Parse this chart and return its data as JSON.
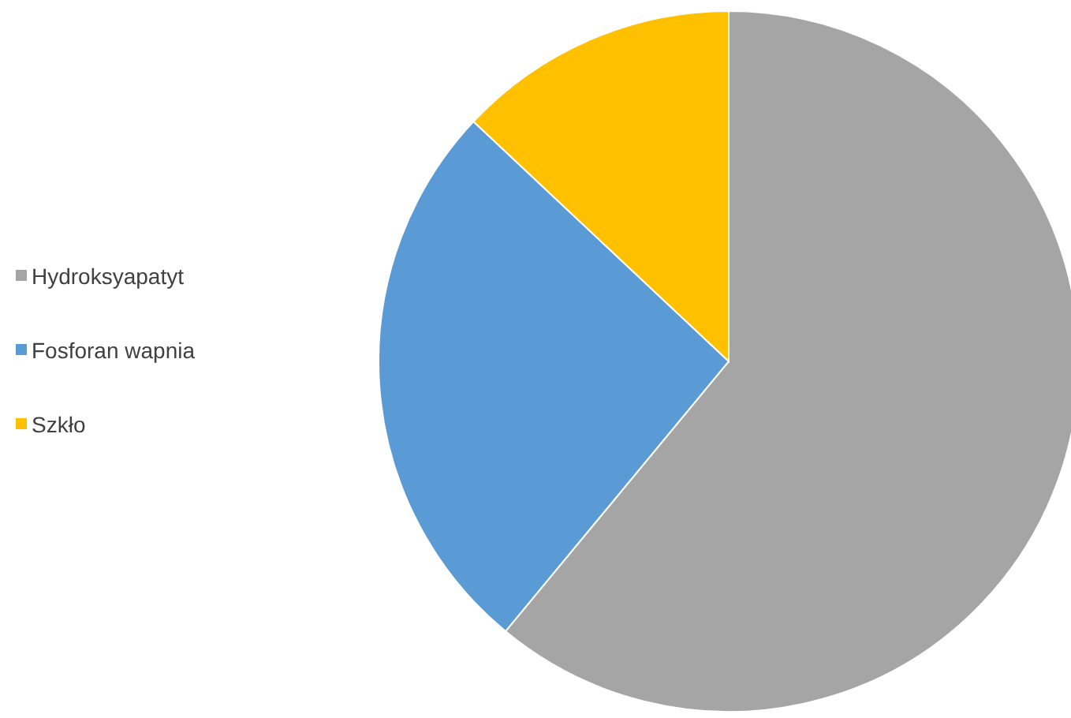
{
  "chart_data": {
    "type": "pie",
    "categories": [
      "Hydroksyapatyt",
      "Fosforan wapnia",
      "Szkło"
    ],
    "values": [
      61,
      26,
      13
    ],
    "colors": [
      "#a5a5a5",
      "#5b9bd5",
      "#ffc000"
    ],
    "legend": "left"
  }
}
